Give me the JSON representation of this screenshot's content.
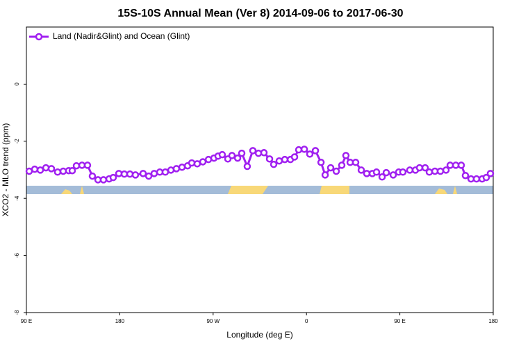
{
  "chart_data": {
    "type": "line",
    "title": "15S-10S Annual Mean (Ver 8)   2014-09-06 to 2017-06-30",
    "x_label": "Longitude (deg E)",
    "y_label": "XCO2 - MLO trend (ppm)",
    "legend_position": "upper left",
    "xlim": [
      -270,
      180
    ],
    "xticks": [
      {
        "value": -270,
        "label": "90 E"
      },
      {
        "value": -180,
        "label": "180"
      },
      {
        "value": -90,
        "label": "90 W"
      },
      0,
      {
        "value": 90,
        "label": "90 E"
      },
      180
    ],
    "ylim": [
      -8,
      2
    ],
    "yticks": [
      -8,
      -6,
      -4,
      -2,
      0
    ],
    "series": [
      {
        "name": "Land (Nadir&Glint) and Ocean (Glint)",
        "color": "#a020f0",
        "x": [
          -267.3,
          -262,
          -256.6,
          -251.2,
          -245.9,
          -239.9,
          -234.5,
          -229.2,
          -225.8,
          -221.8,
          -216.4,
          -211.1,
          -206.4,
          -201,
          -195.7,
          -190.3,
          -186.3,
          -180.9,
          -175.6,
          -170.2,
          -164.9,
          -157.5,
          -152.1,
          -146.8,
          -141.4,
          -136.1,
          -130.7,
          -125.4,
          -120,
          -114.6,
          -110.6,
          -105.3,
          -99.9,
          -94.5,
          -89.2,
          -85.2,
          -81.2,
          -75.8,
          -71.8,
          -66.4,
          -62.4,
          -57.1,
          -51.7,
          -46.3,
          -41,
          -35.6,
          -31.6,
          -26.3,
          -20.9,
          -15.5,
          -11.5,
          -7.5,
          -2.1,
          3.2,
          8.6,
          14,
          18,
          23.3,
          28.7,
          34,
          38,
          42.1,
          47.4,
          52.8,
          58.1,
          63.5,
          67.5,
          72.9,
          76.9,
          83.6,
          88.9,
          92.9,
          99.6,
          105,
          109,
          114.4,
          118.4,
          123.8,
          129.1,
          134.5,
          138.5,
          143.9,
          149.2,
          153.2,
          158.6,
          163.9,
          169.3,
          173.3,
          177.3
        ],
        "values": [
          -3.05,
          -2.98,
          -3.01,
          -2.93,
          -2.96,
          -3.08,
          -3.05,
          -3.03,
          -3.03,
          -2.86,
          -2.84,
          -2.84,
          -3.22,
          -3.35,
          -3.35,
          -3.32,
          -3.27,
          -3.13,
          -3.15,
          -3.15,
          -3.18,
          -3.13,
          -3.22,
          -3.13,
          -3.08,
          -3.08,
          -3.01,
          -2.96,
          -2.91,
          -2.86,
          -2.76,
          -2.79,
          -2.72,
          -2.64,
          -2.59,
          -2.52,
          -2.47,
          -2.62,
          -2.5,
          -2.59,
          -2.42,
          -2.88,
          -2.33,
          -2.42,
          -2.4,
          -2.62,
          -2.81,
          -2.69,
          -2.64,
          -2.64,
          -2.55,
          -2.3,
          -2.28,
          -2.45,
          -2.33,
          -2.74,
          -3.18,
          -2.93,
          -3.05,
          -2.84,
          -2.5,
          -2.74,
          -2.74,
          -3.01,
          -3.13,
          -3.13,
          -3.08,
          -3.25,
          -3.1,
          -3.18,
          -3.08,
          -3.08,
          -3.01,
          -3.01,
          -2.93,
          -2.93,
          -3.08,
          -3.05,
          -3.05,
          -3.01,
          -2.84,
          -2.84,
          -2.84,
          -3.2,
          -3.32,
          -3.32,
          -3.32,
          -3.27,
          -3.13
        ]
      }
    ]
  }
}
